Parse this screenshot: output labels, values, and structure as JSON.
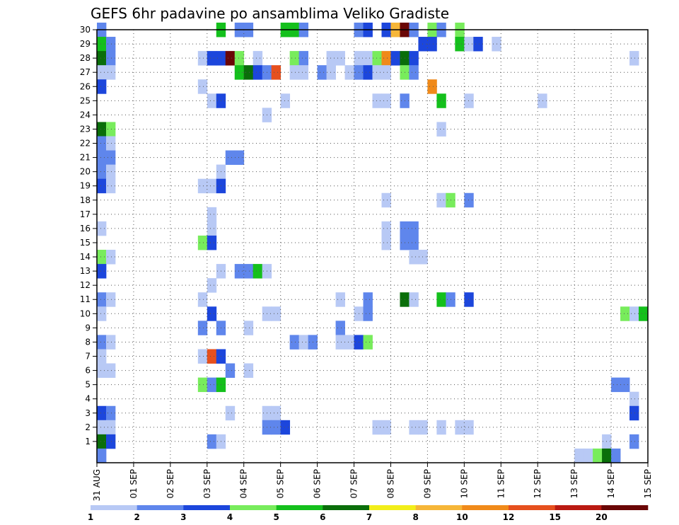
{
  "chart_data": {
    "type": "heatmap",
    "title": "GEFS 6hr padavine po ansamblima Veliko Gradiste",
    "xlabel": "",
    "ylabel": "",
    "x_tick_labels": [
      "31 AUG",
      "01 SEP",
      "02 SEP",
      "03 SEP",
      "04 SEP",
      "05 SEP",
      "06 SEP",
      "07 SEP",
      "08 SEP",
      "09 SEP",
      "10 SEP",
      "11 SEP",
      "12 SEP",
      "13 SEP",
      "14 SEP",
      "15 SEP"
    ],
    "y_tick_labels": [
      "1",
      "2",
      "3",
      "4",
      "5",
      "6",
      "7",
      "8",
      "9",
      "10",
      "11",
      "12",
      "13",
      "14",
      "15",
      "16",
      "17",
      "18",
      "19",
      "20",
      "21",
      "22",
      "23",
      "24",
      "25",
      "26",
      "27",
      "28",
      "29",
      "30"
    ],
    "x_range_days": [
      0,
      15
    ],
    "y_range_members": [
      0,
      30
    ],
    "time_step_hours": 6,
    "grid": true,
    "grid_style": "dotted",
    "colorbar": {
      "position": "bottom",
      "labels": [
        "1",
        "2",
        "3",
        "4",
        "5",
        "6",
        "7",
        "8",
        "10",
        "12",
        "15",
        "20"
      ],
      "colors": [
        "#b8c9f5",
        "#5f86ec",
        "#1c46dc",
        "#78ec5c",
        "#14c01c",
        "#0a6e0a",
        "#f2ee1a",
        "#f6b638",
        "#f08a1a",
        "#e6501e",
        "#ba1a12",
        "#6a0606"
      ]
    },
    "cells": [
      {
        "m": 30,
        "s": [
          [
            1,
            1
          ],
          [
            14,
            4
          ],
          [
            16,
            1
          ],
          [
            17,
            1
          ],
          [
            21,
            4
          ],
          [
            22,
            4
          ],
          [
            23,
            1
          ],
          [
            29,
            1
          ],
          [
            30,
            2
          ],
          [
            32,
            2
          ],
          [
            33,
            7
          ],
          [
            34,
            11
          ],
          [
            35,
            1
          ],
          [
            37,
            3
          ],
          [
            38,
            1
          ],
          [
            40,
            3
          ]
        ]
      },
      {
        "m": 29,
        "s": [
          [
            1,
            4
          ],
          [
            2,
            1
          ],
          [
            36,
            2
          ],
          [
            37,
            2
          ],
          [
            40,
            4
          ],
          [
            41,
            0
          ],
          [
            42,
            2
          ],
          [
            44,
            0
          ]
        ]
      },
      {
        "m": 28,
        "s": [
          [
            1,
            5
          ],
          [
            2,
            1
          ],
          [
            12,
            0
          ],
          [
            13,
            2
          ],
          [
            14,
            2
          ],
          [
            15,
            11
          ],
          [
            16,
            3
          ],
          [
            18,
            0
          ],
          [
            22,
            3
          ],
          [
            23,
            1
          ],
          [
            26,
            0
          ],
          [
            27,
            0
          ],
          [
            29,
            0
          ],
          [
            30,
            0
          ],
          [
            31,
            3
          ],
          [
            32,
            8
          ],
          [
            33,
            2
          ],
          [
            34,
            5
          ],
          [
            35,
            2
          ],
          [
            59,
            0
          ]
        ]
      },
      {
        "m": 27,
        "s": [
          [
            1,
            0
          ],
          [
            2,
            0
          ],
          [
            16,
            4
          ],
          [
            17,
            5
          ],
          [
            18,
            2
          ],
          [
            19,
            1
          ],
          [
            20,
            9
          ],
          [
            22,
            0
          ],
          [
            23,
            0
          ],
          [
            25,
            1
          ],
          [
            26,
            0
          ],
          [
            28,
            0
          ],
          [
            29,
            1
          ],
          [
            30,
            2
          ],
          [
            31,
            0
          ],
          [
            32,
            0
          ],
          [
            34,
            3
          ],
          [
            35,
            1
          ]
        ]
      },
      {
        "m": 26,
        "s": [
          [
            1,
            2
          ],
          [
            12,
            0
          ],
          [
            37,
            8
          ]
        ]
      },
      {
        "m": 25,
        "s": [
          [
            13,
            0
          ],
          [
            14,
            2
          ],
          [
            21,
            0
          ],
          [
            31,
            0
          ],
          [
            32,
            0
          ],
          [
            34,
            1
          ],
          [
            38,
            4
          ],
          [
            41,
            0
          ],
          [
            49,
            0
          ]
        ]
      },
      {
        "m": 24,
        "s": [
          [
            19,
            0
          ]
        ]
      },
      {
        "m": 23,
        "s": [
          [
            1,
            5
          ],
          [
            2,
            3
          ],
          [
            38,
            0
          ]
        ]
      },
      {
        "m": 22,
        "s": [
          [
            1,
            1
          ],
          [
            2,
            0
          ]
        ]
      },
      {
        "m": 21,
        "s": [
          [
            1,
            1
          ],
          [
            2,
            1
          ],
          [
            15,
            1
          ],
          [
            16,
            1
          ]
        ]
      },
      {
        "m": 20,
        "s": [
          [
            1,
            1
          ],
          [
            2,
            0
          ],
          [
            14,
            0
          ]
        ]
      },
      {
        "m": 19,
        "s": [
          [
            1,
            2
          ],
          [
            2,
            0
          ],
          [
            12,
            0
          ],
          [
            13,
            0
          ],
          [
            14,
            2
          ]
        ]
      },
      {
        "m": 18,
        "s": [
          [
            32,
            0
          ],
          [
            38,
            0
          ],
          [
            39,
            3
          ],
          [
            41,
            1
          ]
        ]
      },
      {
        "m": 17,
        "s": [
          [
            13,
            0
          ]
        ]
      },
      {
        "m": 16,
        "s": [
          [
            1,
            0
          ],
          [
            13,
            0
          ],
          [
            32,
            0
          ],
          [
            34,
            1
          ],
          [
            35,
            1
          ]
        ]
      },
      {
        "m": 15,
        "s": [
          [
            12,
            3
          ],
          [
            13,
            2
          ],
          [
            32,
            0
          ],
          [
            34,
            1
          ],
          [
            35,
            1
          ]
        ]
      },
      {
        "m": 14,
        "s": [
          [
            1,
            3
          ],
          [
            2,
            0
          ],
          [
            35,
            0
          ],
          [
            36,
            0
          ]
        ]
      },
      {
        "m": 13,
        "s": [
          [
            1,
            2
          ],
          [
            14,
            0
          ],
          [
            16,
            1
          ],
          [
            17,
            1
          ],
          [
            18,
            4
          ],
          [
            19,
            0
          ]
        ]
      },
      {
        "m": 12,
        "s": [
          [
            13,
            0
          ]
        ]
      },
      {
        "m": 11,
        "s": [
          [
            1,
            1
          ],
          [
            2,
            0
          ],
          [
            12,
            0
          ],
          [
            27,
            0
          ],
          [
            30,
            1
          ],
          [
            34,
            5
          ],
          [
            35,
            0
          ],
          [
            38,
            4
          ],
          [
            39,
            1
          ],
          [
            41,
            2
          ]
        ]
      },
      {
        "m": 10,
        "s": [
          [
            1,
            0
          ],
          [
            13,
            2
          ],
          [
            19,
            0
          ],
          [
            20,
            0
          ],
          [
            29,
            0
          ],
          [
            30,
            1
          ],
          [
            58,
            3
          ],
          [
            59,
            0
          ],
          [
            60,
            4
          ]
        ]
      },
      {
        "m": 9,
        "s": [
          [
            12,
            1
          ],
          [
            14,
            1
          ],
          [
            17,
            0
          ],
          [
            27,
            1
          ]
        ]
      },
      {
        "m": 8,
        "s": [
          [
            1,
            1
          ],
          [
            2,
            0
          ],
          [
            22,
            1
          ],
          [
            23,
            0
          ],
          [
            24,
            1
          ],
          [
            27,
            0
          ],
          [
            28,
            0
          ],
          [
            29,
            2
          ],
          [
            30,
            3
          ]
        ]
      },
      {
        "m": 7,
        "s": [
          [
            1,
            0
          ],
          [
            12,
            0
          ],
          [
            13,
            9
          ],
          [
            14,
            2
          ]
        ]
      },
      {
        "m": 6,
        "s": [
          [
            1,
            0
          ],
          [
            2,
            0
          ],
          [
            15,
            1
          ],
          [
            17,
            0
          ]
        ]
      },
      {
        "m": 5,
        "s": [
          [
            12,
            3
          ],
          [
            13,
            1
          ],
          [
            14,
            4
          ],
          [
            57,
            1
          ],
          [
            58,
            1
          ]
        ]
      },
      {
        "m": 4,
        "s": [
          [
            59,
            0
          ]
        ]
      },
      {
        "m": 3,
        "s": [
          [
            1,
            2
          ],
          [
            2,
            1
          ],
          [
            15,
            0
          ],
          [
            19,
            0
          ],
          [
            20,
            0
          ],
          [
            59,
            2
          ]
        ]
      },
      {
        "m": 2,
        "s": [
          [
            1,
            0
          ],
          [
            2,
            0
          ],
          [
            19,
            1
          ],
          [
            20,
            1
          ],
          [
            21,
            2
          ],
          [
            31,
            0
          ],
          [
            32,
            0
          ],
          [
            35,
            0
          ],
          [
            36,
            0
          ],
          [
            38,
            0
          ],
          [
            40,
            0
          ],
          [
            41,
            0
          ]
        ]
      },
      {
        "m": 1,
        "s": [
          [
            1,
            5
          ],
          [
            2,
            2
          ],
          [
            13,
            1
          ],
          [
            14,
            0
          ],
          [
            56,
            0
          ],
          [
            59,
            1
          ]
        ]
      },
      {
        "m": 0,
        "s": [
          [
            1,
            1
          ],
          [
            53,
            0
          ],
          [
            54,
            0
          ],
          [
            55,
            3
          ],
          [
            56,
            5
          ],
          [
            57,
            1
          ]
        ]
      }
    ]
  }
}
